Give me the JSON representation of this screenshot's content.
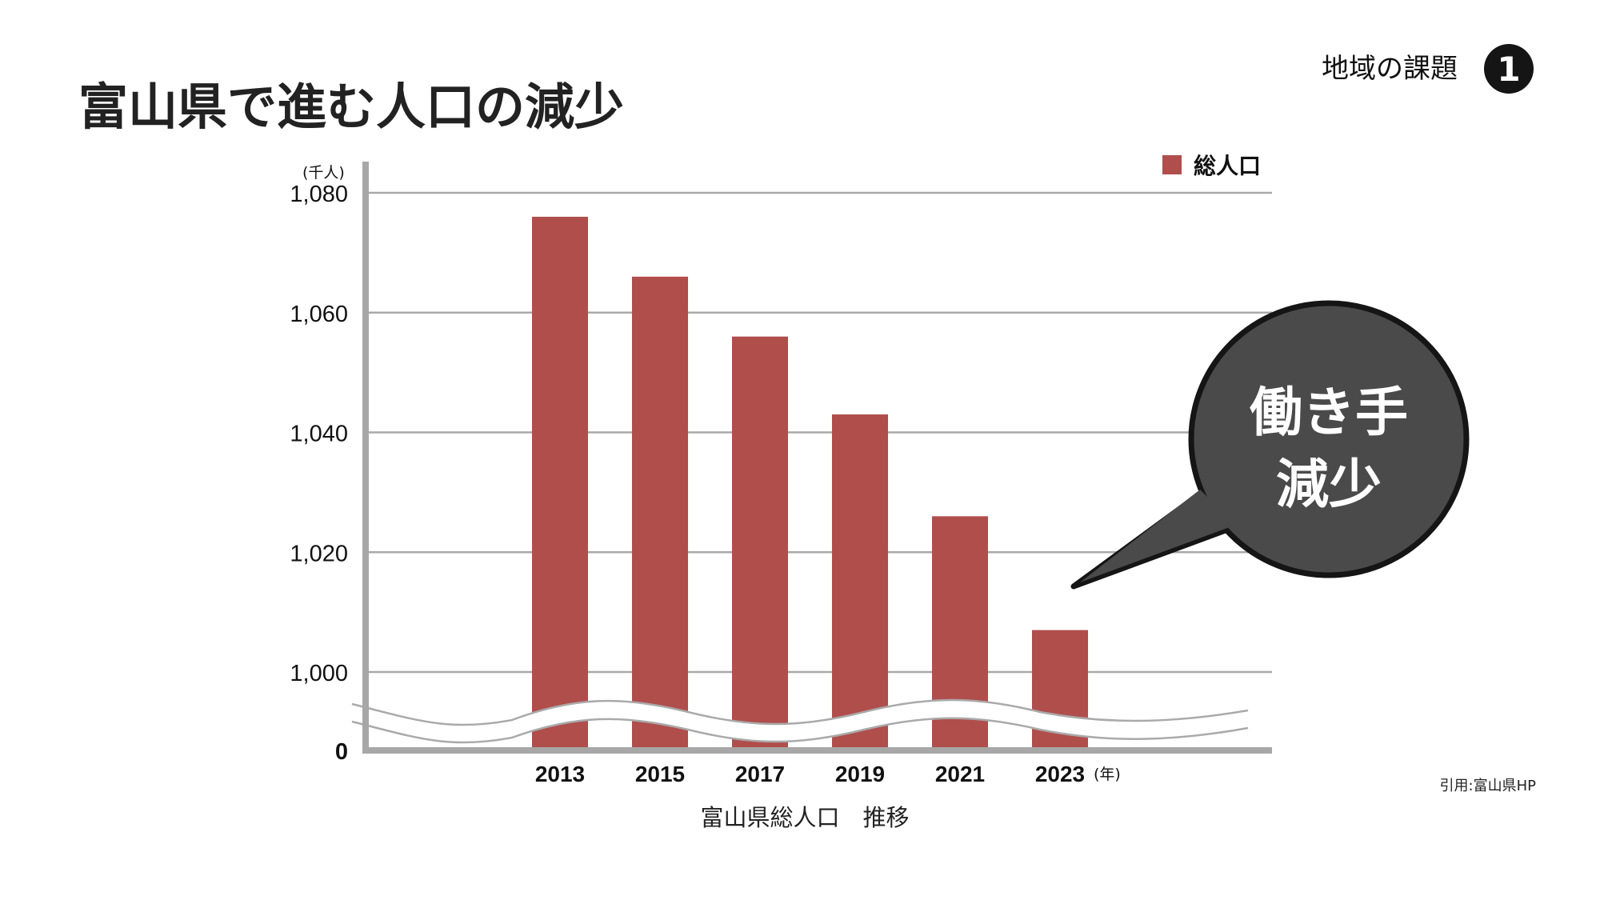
{
  "page": {
    "title": "富山県で進む人口の減少",
    "topic_label": "地域の課題",
    "topic_number": "1",
    "bubble_line1": "働き手",
    "bubble_line2": "減少",
    "citation": "引用:富山県HP"
  },
  "chart_data": {
    "type": "bar",
    "title": "",
    "xlabel": "富山県総人口　推移",
    "ylabel": "(千人)",
    "x_unit": "(年)",
    "categories": [
      "2013",
      "2015",
      "2017",
      "2019",
      "2021",
      "2023"
    ],
    "series": [
      {
        "name": "総人口",
        "values": [
          1076,
          1066,
          1056,
          1043,
          1026,
          1007
        ],
        "color": "#b04e4c"
      }
    ],
    "y_ticks": [
      "0",
      "1,000",
      "1,020",
      "1,040",
      "1,060",
      "1,080"
    ],
    "ylim": [
      1000,
      1080
    ],
    "axis_break": "between 0 and 1,000",
    "grid": true,
    "legend": "top-right"
  }
}
